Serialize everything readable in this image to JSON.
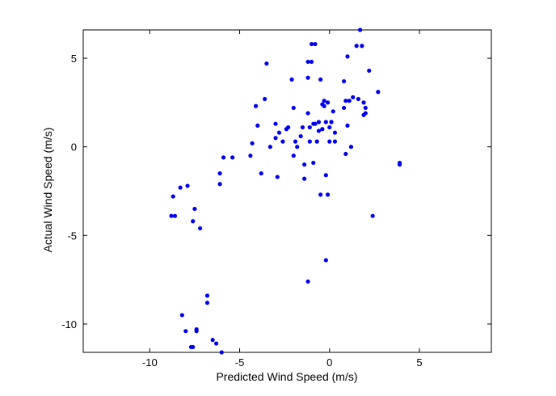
{
  "chart_data": {
    "type": "scatter",
    "title": "",
    "xlabel": "Predicted Wind Speed (m/s)",
    "ylabel": "Actual Wind Speed (m/s)",
    "xlim": [
      -13.7,
      9.0
    ],
    "ylim": [
      -11.6,
      6.6
    ],
    "xticks": [
      -10,
      -5,
      0,
      5
    ],
    "yticks": [
      -10,
      -5,
      0,
      5
    ],
    "xtick_labels": [
      "-10",
      "-5",
      "0",
      "5"
    ],
    "ytick_labels": [
      "-10",
      "-5",
      "0",
      "5"
    ],
    "grid": false,
    "marker_color": "#0000ee",
    "series": [
      {
        "x": [
          -8.8,
          -8.7,
          -8.6,
          -8.3,
          -8.2,
          -7.9,
          -7.7,
          -7.6,
          -7.5,
          -7.4,
          -7.2,
          -8.0,
          -7.4,
          -7.6,
          -6.8,
          -6.8,
          -6.5,
          -6.1,
          -6.0,
          -6.3,
          -6.1,
          -5.9,
          -5.4,
          -4.4,
          -4.3,
          -4.0,
          -4.1,
          -3.8,
          -3.6,
          -3.5,
          -3.3,
          -3.0,
          -3.0,
          -2.9,
          -2.8,
          -2.6,
          -2.4,
          -2.3,
          -2.1,
          -2.0,
          -2.0,
          -1.9,
          -1.8,
          -1.6,
          -1.5,
          -1.4,
          -1.4,
          -1.2,
          -1.2,
          -1.2,
          -1.1,
          -1.1,
          -1.0,
          -1.0,
          -0.9,
          -0.9,
          -0.8,
          -0.8,
          -0.7,
          -0.6,
          -0.6,
          -0.5,
          -0.5,
          -0.4,
          -0.4,
          -0.3,
          -0.3,
          -0.2,
          -0.2,
          -0.1,
          -0.1,
          0.0,
          0.0,
          0.1,
          0.1,
          0.2,
          0.3,
          0.3,
          0.8,
          0.8,
          0.9,
          0.9,
          1.0,
          1.0,
          1.1,
          1.2,
          1.3,
          1.5,
          1.6,
          1.7,
          1.8,
          1.9,
          1.9,
          2.0,
          2.0,
          2.2,
          2.4,
          2.7,
          3.9,
          3.9,
          -1.2,
          -0.2
        ],
        "y": [
          -3.9,
          -2.8,
          -3.9,
          -2.3,
          -9.5,
          -2.2,
          -11.3,
          -4.2,
          -3.5,
          -10.3,
          -4.6,
          -10.4,
          -10.4,
          -11.3,
          -8.4,
          -8.8,
          -10.9,
          -2.1,
          -11.6,
          -11.1,
          -1.5,
          -0.6,
          -0.6,
          -0.5,
          0.2,
          1.2,
          2.3,
          -1.5,
          2.7,
          4.7,
          0.0,
          0.5,
          1.3,
          -1.7,
          0.8,
          0.3,
          1.0,
          1.1,
          3.8,
          2.2,
          -0.5,
          0.3,
          0.0,
          0.6,
          1.1,
          -1.0,
          -1.8,
          3.9,
          4.8,
          1.9,
          0.3,
          1.1,
          4.8,
          5.8,
          1.3,
          -0.9,
          5.8,
          1.3,
          0.3,
          0.9,
          1.4,
          3.8,
          -2.7,
          2.4,
          1.0,
          2.6,
          2.3,
          1.4,
          -1.6,
          2.5,
          -2.7,
          1.1,
          0.3,
          1.4,
          1.4,
          2.0,
          0.8,
          0.3,
          2.2,
          3.7,
          2.6,
          -0.4,
          5.1,
          1.2,
          2.6,
          0.0,
          2.8,
          5.7,
          2.7,
          6.6,
          5.7,
          1.8,
          2.5,
          2.2,
          1.9,
          4.3,
          -3.9,
          3.1,
          -0.9,
          -1.0,
          -7.6,
          -6.4
        ]
      }
    ]
  }
}
